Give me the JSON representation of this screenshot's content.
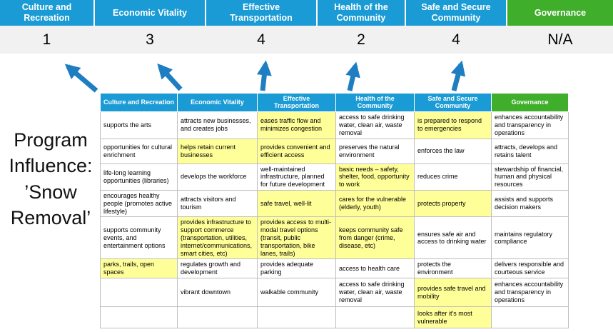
{
  "title_lines": [
    "Program",
    "Influence:",
    "’Snow",
    "Removal’"
  ],
  "colors": {
    "header_blue": "#1B9BD5",
    "header_green": "#3FAE2A",
    "highlight_yellow": "#FFFF99",
    "score_band_gray": "#F1F1F1",
    "arrow_blue": "#1F7EC2"
  },
  "score_banner": {
    "columns": [
      {
        "label": "Culture and Recreation",
        "score": "1",
        "color": "blue"
      },
      {
        "label": "Economic Vitality",
        "score": "3",
        "color": "blue"
      },
      {
        "label": "Effective Transportation",
        "score": "4",
        "color": "blue"
      },
      {
        "label": "Health of the Community",
        "score": "2",
        "color": "blue"
      },
      {
        "label": "Safe and Secure Community",
        "score": "4",
        "color": "blue"
      },
      {
        "label": "Governance",
        "score": "N/A",
        "color": "green"
      }
    ]
  },
  "matrix": {
    "headers": [
      {
        "label": "Culture and Recreation",
        "color": "blue"
      },
      {
        "label": "Economic Vitality",
        "color": "blue"
      },
      {
        "label": "Effective Transportation",
        "color": "blue"
      },
      {
        "label": "Health of the Community",
        "color": "blue"
      },
      {
        "label": "Safe and Secure Community",
        "color": "blue"
      },
      {
        "label": "Governance",
        "color": "green"
      }
    ],
    "rows": [
      [
        {
          "text": "supports the arts",
          "highlight": false
        },
        {
          "text": "attracts new businesses, and creates jobs",
          "highlight": false
        },
        {
          "text": "eases traffic flow and minimizes congestion",
          "highlight": true
        },
        {
          "text": "access to safe drinking water, clean air, waste removal",
          "highlight": false
        },
        {
          "text": "is prepared to respond to emergencies",
          "highlight": true
        },
        {
          "text": "enhances accountability and transparency in operations",
          "highlight": false
        }
      ],
      [
        {
          "text": "opportunities for cultural enrichment",
          "highlight": false
        },
        {
          "text": "helps retain current businesses",
          "highlight": true
        },
        {
          "text": "provides convenient and efficient access",
          "highlight": true
        },
        {
          "text": "preserves the natural environment",
          "highlight": false
        },
        {
          "text": "enforces the law",
          "highlight": false
        },
        {
          "text": "attracts, develops and retains talent",
          "highlight": false
        }
      ],
      [
        {
          "text": "life-long learning opportunities (libraries)",
          "highlight": false
        },
        {
          "text": "develops the workforce",
          "highlight": false
        },
        {
          "text": "well-maintained infrastructure, planned for future development",
          "highlight": false
        },
        {
          "text": "basic needs – safety, shelter, food, opportunity to work",
          "highlight": true
        },
        {
          "text": "reduces crime",
          "highlight": false
        },
        {
          "text": "stewardship of financial, human and physical resources",
          "highlight": false
        }
      ],
      [
        {
          "text": "encourages healthy people (promotes active lifestyle)",
          "highlight": false
        },
        {
          "text": "attracts visitors and tourism",
          "highlight": false
        },
        {
          "text": "safe travel, well-lit",
          "highlight": true
        },
        {
          "text": "cares for the vulnerable (elderly, youth)",
          "highlight": true
        },
        {
          "text": "protects property",
          "highlight": true
        },
        {
          "text": "assists and supports decision makers",
          "highlight": false
        }
      ],
      [
        {
          "text": "supports community events, and entertainment options",
          "highlight": false
        },
        {
          "text": "provides infrastructure to support commerce (transportation, utilities, internet/communications, smart cities, etc)",
          "highlight": true
        },
        {
          "text": "provides access to multi-modal travel options (transit, public transportation, bike lanes, trails)",
          "highlight": true
        },
        {
          "text": "keeps community safe from danger (crime, disease, etc)",
          "highlight": true
        },
        {
          "text": "ensures safe air and access to drinking water",
          "highlight": false
        },
        {
          "text": "maintains regulatory compliance",
          "highlight": false
        }
      ],
      [
        {
          "text": "parks, trails, open spaces",
          "highlight": true
        },
        {
          "text": "regulates growth and development",
          "highlight": false
        },
        {
          "text": "provides adequate parking",
          "highlight": false
        },
        {
          "text": "access to health care",
          "highlight": false
        },
        {
          "text": "protects the environment",
          "highlight": false
        },
        {
          "text": "delivers responsible and courteous service",
          "highlight": false
        }
      ],
      [
        {
          "text": "",
          "highlight": false
        },
        {
          "text": "vibrant downtown",
          "highlight": false
        },
        {
          "text": "walkable community",
          "highlight": false
        },
        {
          "text": "access to safe drinking water, clean air, waste removal",
          "highlight": false
        },
        {
          "text": "provides safe travel and mobility",
          "highlight": true
        },
        {
          "text": "enhances accountability and transparency in operations",
          "highlight": false
        }
      ],
      [
        {
          "text": "",
          "highlight": false
        },
        {
          "text": "",
          "highlight": false
        },
        {
          "text": "",
          "highlight": false
        },
        {
          "text": "",
          "highlight": false
        },
        {
          "text": "looks after it's most vulnerable",
          "highlight": true
        },
        {
          "text": "",
          "highlight": false
        }
      ]
    ]
  }
}
